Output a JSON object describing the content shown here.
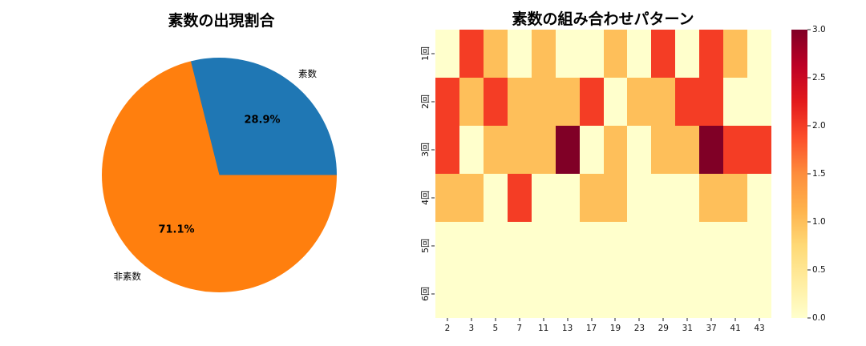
{
  "chart_data": [
    {
      "type": "pie",
      "title": "素数の出現割合",
      "labels": [
        "素数",
        "非素数"
      ],
      "values": [
        28.9,
        71.1
      ],
      "value_labels": [
        "28.9%",
        "71.1%"
      ],
      "colors": [
        "#1f77b4",
        "#ff7f0e"
      ],
      "start_angle_deg": 0,
      "direction": "counterclockwise",
      "legend_position": "none"
    },
    {
      "type": "heatmap",
      "title": "素数の組み合わせパターン",
      "x_tick_labels": [
        "2",
        "3",
        "5",
        "7",
        "11",
        "13",
        "17",
        "19",
        "23",
        "29",
        "31",
        "37",
        "41",
        "43"
      ],
      "y_tick_labels": [
        "1回",
        "2回",
        "3回",
        "4回",
        "5回",
        "6回"
      ],
      "values": [
        [
          0,
          2,
          1,
          0,
          1,
          0,
          0,
          1,
          0,
          2,
          0,
          2,
          1,
          0
        ],
        [
          2,
          1,
          2,
          1,
          1,
          1,
          2,
          0,
          1,
          1,
          2,
          2,
          0,
          0
        ],
        [
          2,
          0,
          1,
          1,
          1,
          3,
          0,
          1,
          0,
          1,
          1,
          3,
          2,
          2
        ],
        [
          1,
          1,
          0,
          2,
          0,
          0,
          1,
          1,
          0,
          0,
          0,
          1,
          1,
          0
        ],
        [
          0,
          0,
          0,
          0,
          0,
          0,
          0,
          0,
          0,
          0,
          0,
          0,
          0,
          0
        ],
        [
          0,
          0,
          0,
          0,
          0,
          0,
          0,
          0,
          0,
          0,
          0,
          0,
          0,
          0
        ]
      ],
      "vmin": 0,
      "vmax": 3,
      "colormap": "YlOrRd",
      "grid": false,
      "value_colors": {
        "0": "#ffffcc",
        "1": "#febf5a",
        "2": "#f43d25",
        "3": "#800026"
      },
      "colorbar": {
        "position": "right",
        "tick_labels_top_to_bottom": [
          "3.0",
          "2.5",
          "2.0",
          "1.5",
          "1.0",
          "0.5",
          "0.0"
        ],
        "gradient_stops_bottom_to_top": [
          "#ffffcc",
          "#ffeda0",
          "#fed976",
          "#feb24c",
          "#fd8d3c",
          "#fc4e2a",
          "#e31a1c",
          "#bd0026",
          "#800026"
        ]
      }
    }
  ]
}
